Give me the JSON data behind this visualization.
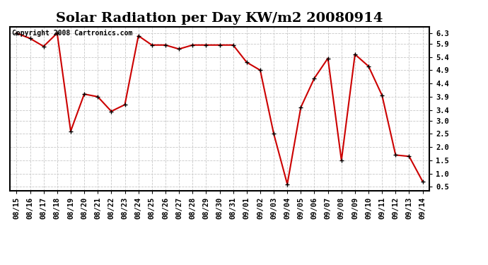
{
  "title": "Solar Radiation per Day KW/m2 20080914",
  "copyright": "Copyright 2008 Cartronics.com",
  "labels": [
    "08/15",
    "08/16",
    "08/17",
    "08/18",
    "08/19",
    "08/20",
    "08/21",
    "08/22",
    "08/23",
    "08/24",
    "08/25",
    "08/26",
    "08/27",
    "08/28",
    "08/29",
    "08/30",
    "08/31",
    "09/01",
    "09/02",
    "09/03",
    "09/04",
    "09/05",
    "09/06",
    "09/07",
    "09/08",
    "09/09",
    "09/10",
    "09/11",
    "09/12",
    "09/13",
    "09/14"
  ],
  "values": [
    6.3,
    6.1,
    5.8,
    6.3,
    2.6,
    4.0,
    3.9,
    3.35,
    3.6,
    6.2,
    5.85,
    5.85,
    5.7,
    5.85,
    5.85,
    5.85,
    5.85,
    5.2,
    4.9,
    2.5,
    0.6,
    3.5,
    4.6,
    5.35,
    1.5,
    5.5,
    5.05,
    3.95,
    1.7,
    1.65,
    0.7
  ],
  "line_color": "#cc0000",
  "marker": "+",
  "marker_color": "#000000",
  "bg_color": "#ffffff",
  "grid_color": "#c8c8c8",
  "ylim": [
    0.35,
    6.55
  ],
  "ytick_vals": [
    0.5,
    1.0,
    1.5,
    2.0,
    2.5,
    3.0,
    3.4,
    3.9,
    4.4,
    4.9,
    5.4,
    5.9,
    6.3
  ],
  "ytick_labels": [
    "0.5",
    "1.0",
    "1.5",
    "2.0",
    "2.5",
    "3.0",
    "3.4",
    "3.9",
    "4.4",
    "4.9",
    "5.4",
    "5.9",
    "6.3"
  ],
  "title_fontsize": 14,
  "label_fontsize": 7.5,
  "copyright_fontsize": 7
}
